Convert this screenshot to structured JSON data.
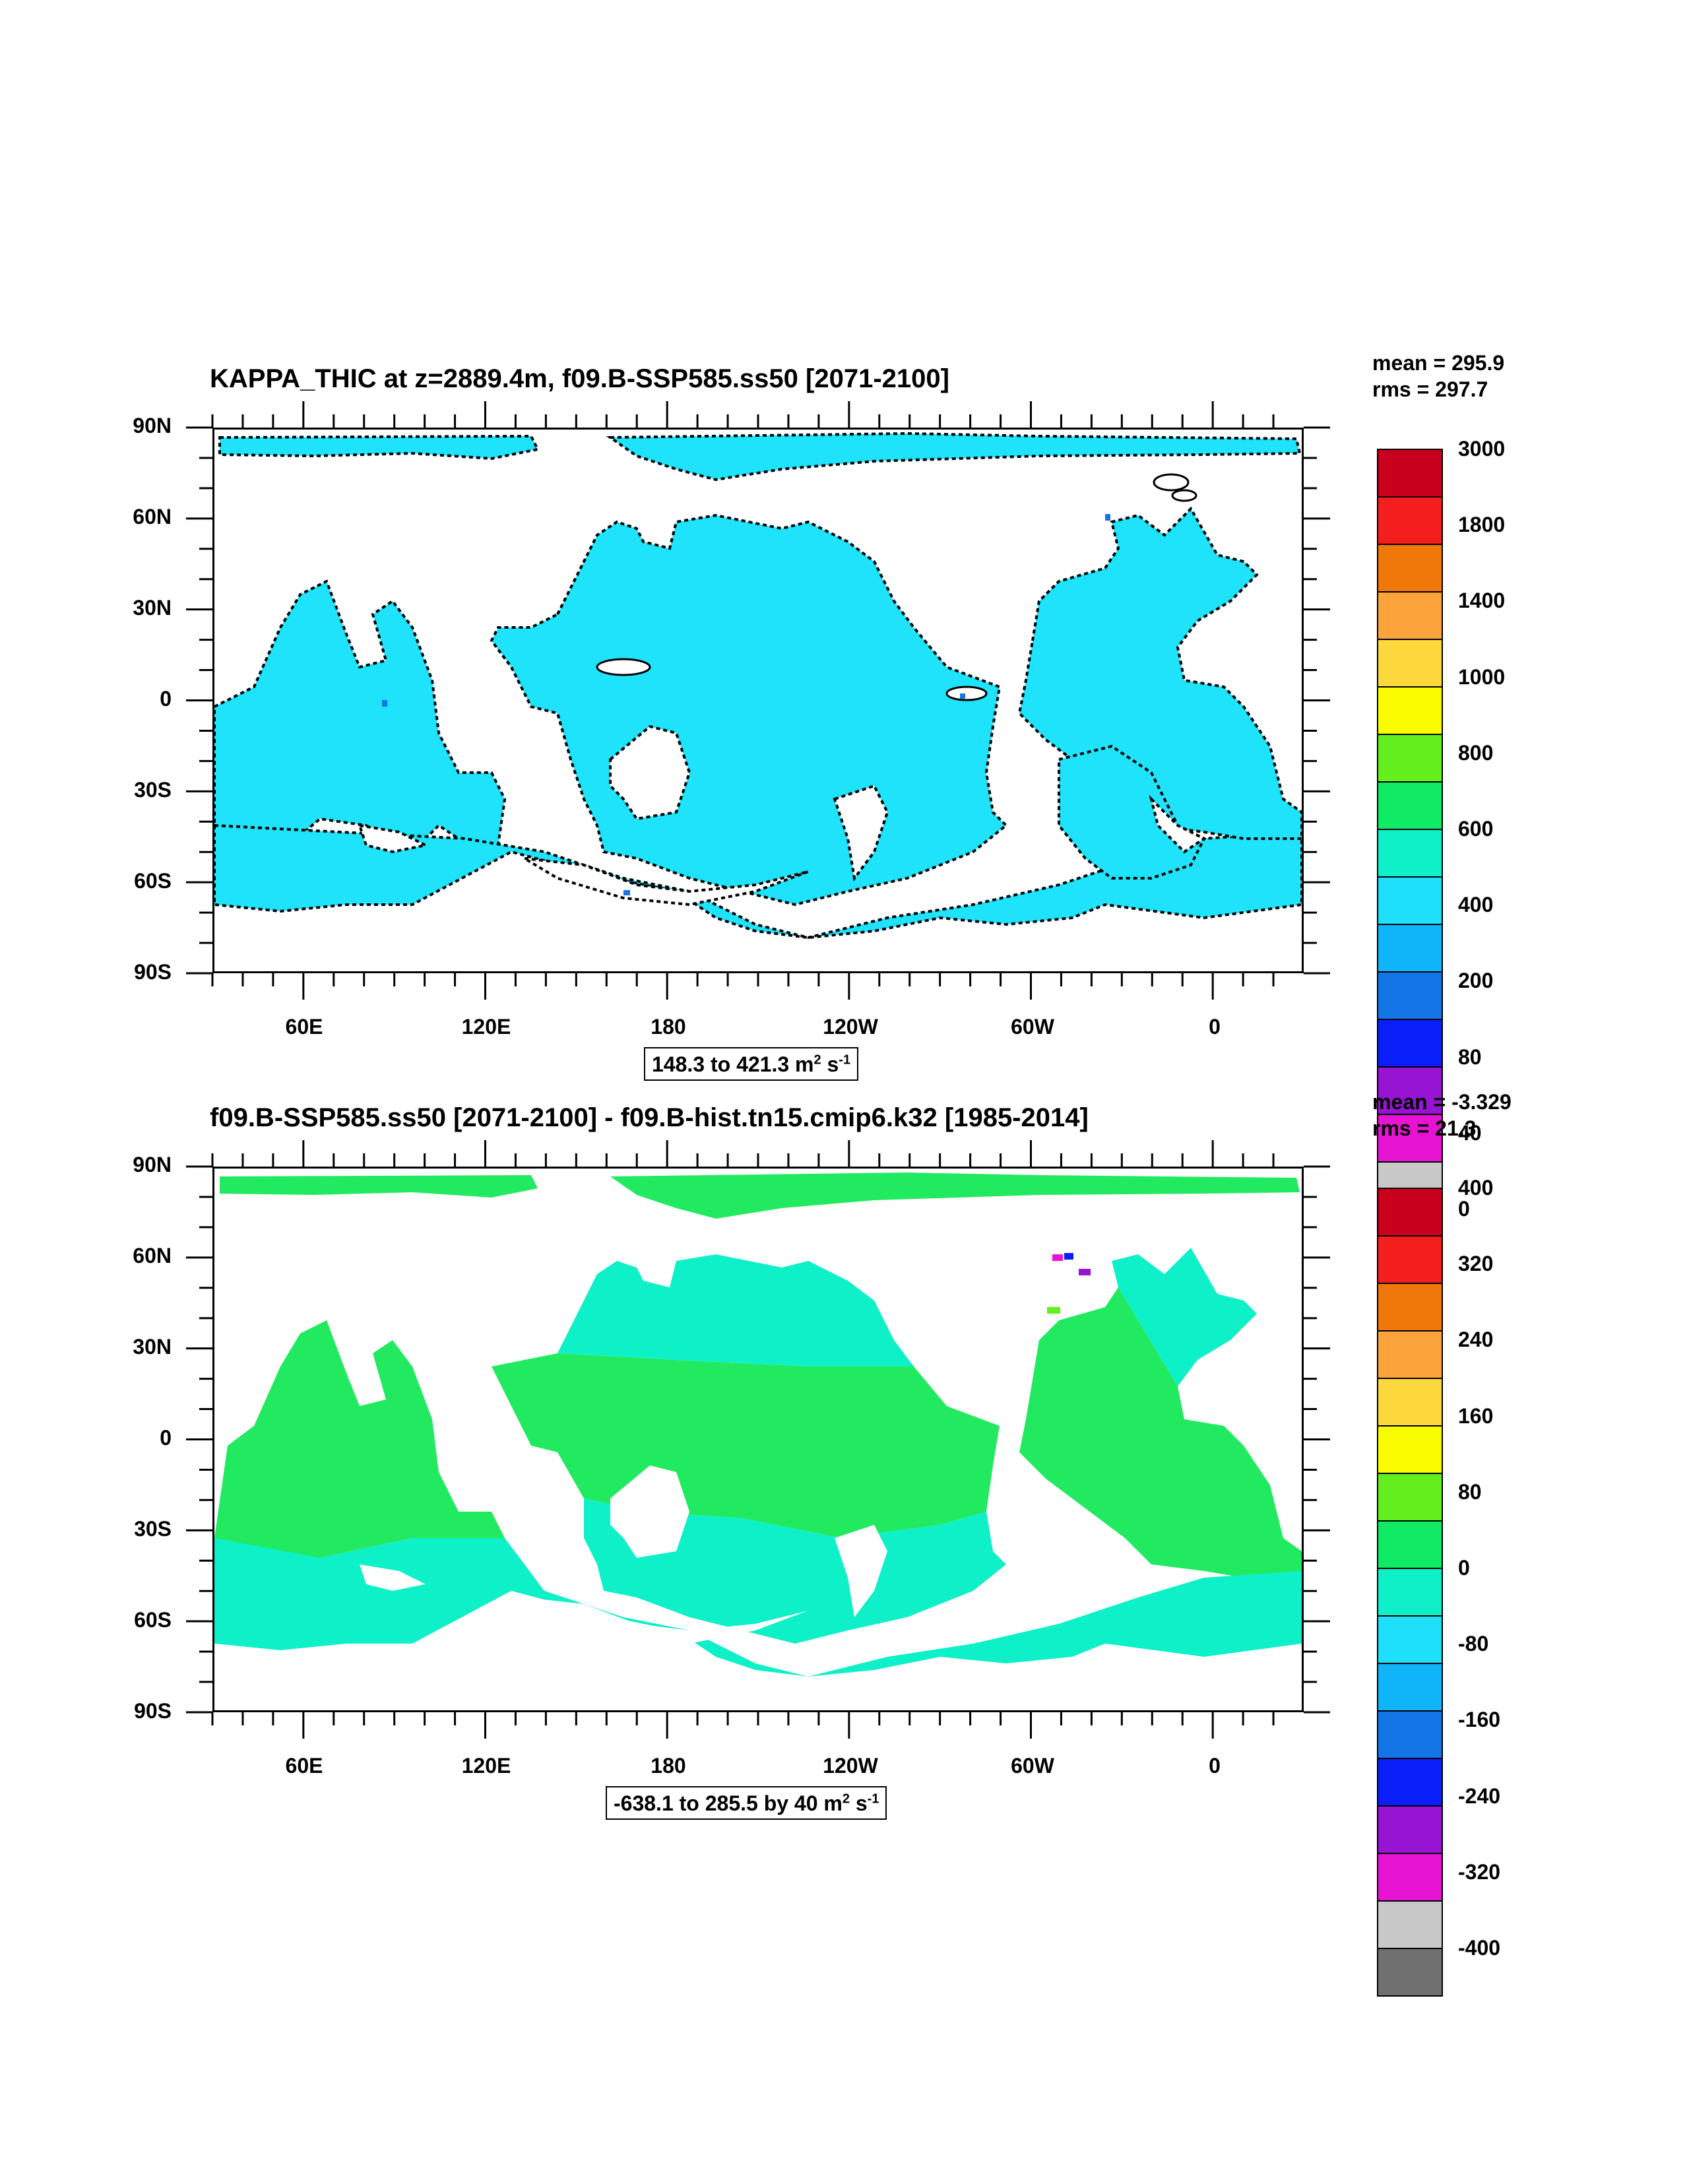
{
  "panels": [
    {
      "title": "KAPPA_THIC at z=2889.4m, f09.B-SSP585.ss50 [2071-2100]",
      "mean": "mean = 295.9",
      "rms": "rms = 297.7",
      "range_text": "148.3 to 421.3 m",
      "range_unit_exp1": "2",
      "range_unit_mid": " s",
      "range_unit_exp2": "-1",
      "colorbar_labels": [
        "3000",
        "1800",
        "1400",
        "1000",
        "800",
        "600",
        "400",
        "200",
        "80",
        "40",
        "0"
      ],
      "field_color": "#1ee3fb",
      "contour_color": "#000000"
    },
    {
      "title": "f09.B-SSP585.ss50 [2071-2100] - f09.B-hist.tn15.cmip6.k32 [1985-2014]",
      "mean": "mean = -3.329",
      "rms": "rms = 21.3",
      "range_text": "-638.1 to 285.5 by 40 m",
      "range_unit_exp1": "2",
      "range_unit_mid": " s",
      "range_unit_exp2": "-1",
      "colorbar_labels": [
        "400",
        "320",
        "240",
        "160",
        "80",
        "0",
        "-80",
        "-160",
        "-240",
        "-320",
        "-400"
      ],
      "field_color_a": "#22ea60",
      "field_color_b": "#0ef0c8"
    }
  ],
  "lat_labels": [
    "90N",
    "60N",
    "30N",
    "0",
    "30S",
    "60S",
    "90S"
  ],
  "lon_labels": [
    "60E",
    "120E",
    "180",
    "120W",
    "60W",
    "0"
  ],
  "colorbar_colors": [
    "#c8001e",
    "#f41e1e",
    "#f0780a",
    "#fba43c",
    "#fcd83c",
    "#fafc00",
    "#64f01e",
    "#10ea64",
    "#10f0c8",
    "#1ee0fa",
    "#10b4f8",
    "#1476e6",
    "#0a1efa",
    "#9614d2",
    "#e614d2",
    "#c8c8c8",
    "#707070"
  ]
}
